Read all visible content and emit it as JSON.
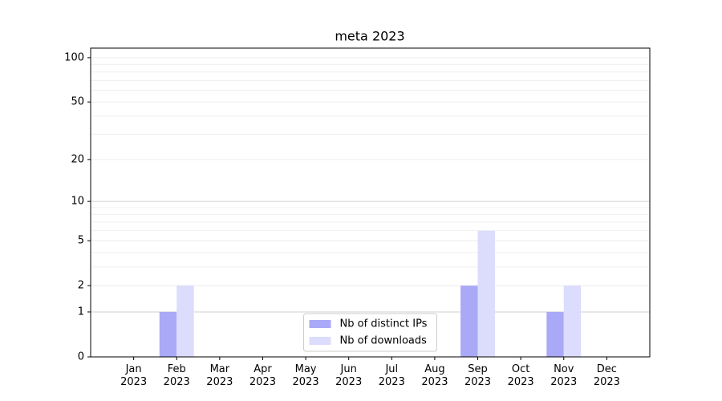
{
  "chart_data": {
    "type": "bar",
    "title": "meta 2023",
    "categories": [
      "Jan\n2023",
      "Feb\n2023",
      "Mar\n2023",
      "Apr\n2023",
      "May\n2023",
      "Jun\n2023",
      "Jul\n2023",
      "Aug\n2023",
      "Sep\n2023",
      "Oct\n2023",
      "Nov\n2023",
      "Dec\n2023"
    ],
    "series": [
      {
        "name": "Nb of distinct IPs",
        "color": "#a9a9f8",
        "values": [
          0,
          1,
          0,
          0,
          0,
          0,
          0,
          0,
          2,
          0,
          1,
          0
        ]
      },
      {
        "name": "Nb of downloads",
        "color": "#dcdcfc",
        "values": [
          0,
          2,
          0,
          0,
          0,
          0,
          0,
          0,
          6,
          0,
          2,
          0
        ]
      }
    ],
    "yscale": "log1p",
    "ylim": [
      0,
      116
    ],
    "yticks": [
      0,
      1,
      2,
      5,
      10,
      20,
      50,
      100
    ],
    "minor_yticks": [
      3,
      4,
      6,
      7,
      8,
      9,
      30,
      40,
      60,
      70,
      80,
      90
    ],
    "grid": true,
    "legend": "lower center"
  }
}
